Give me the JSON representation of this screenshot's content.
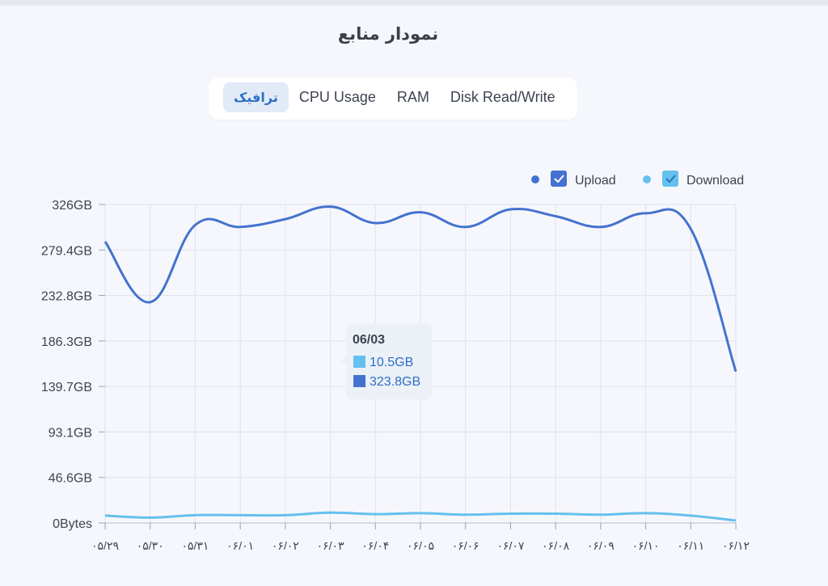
{
  "page": {
    "title": "نمودار منابع"
  },
  "tabs": [
    {
      "label": "ترافیک",
      "active": true
    },
    {
      "label": "CPU Usage",
      "active": false
    },
    {
      "label": "RAM",
      "active": false
    },
    {
      "label": "Disk Read/Write",
      "active": false
    }
  ],
  "colors": {
    "upload": "#4472cf",
    "download": "#64c0ee",
    "grid": "#dfe2ea",
    "accent": "#2c6fc4"
  },
  "chart_data": {
    "type": "line",
    "x": [
      "۰۵/۲۹",
      "۰۵/۳۰",
      "۰۵/۳۱",
      "۰۶/۰۱",
      "۰۶/۰۲",
      "۰۶/۰۳",
      "۰۶/۰۴",
      "۰۶/۰۵",
      "۰۶/۰۶",
      "۰۶/۰۷",
      "۰۶/۰۸",
      "۰۶/۰۹",
      "۰۶/۱۰",
      "۰۶/۱۱",
      "۰۶/۱۲"
    ],
    "yticks": [
      "0Bytes",
      "46.6GB",
      "93.1GB",
      "139.7GB",
      "186.3GB",
      "232.8GB",
      "279.4GB",
      "326GB"
    ],
    "ylim": [
      0,
      326
    ],
    "yunit": "GB",
    "series": [
      {
        "name": "Upload",
        "values": [
          288,
          226,
          305,
          303,
          311,
          323.8,
          307,
          318,
          303,
          321,
          314,
          303,
          317,
          301,
          155
        ]
      },
      {
        "name": "Download",
        "values": [
          7.5,
          5.5,
          8,
          8,
          8,
          10.5,
          9,
          10,
          8.5,
          9.5,
          9.5,
          8.5,
          10,
          7.5,
          2.5
        ]
      }
    ],
    "legend": {
      "position": "top-right",
      "items": [
        "Upload",
        "Download"
      ]
    },
    "tooltip": {
      "date": "06/03",
      "download": "10.5GB",
      "upload": "323.8GB"
    },
    "grid": true
  }
}
